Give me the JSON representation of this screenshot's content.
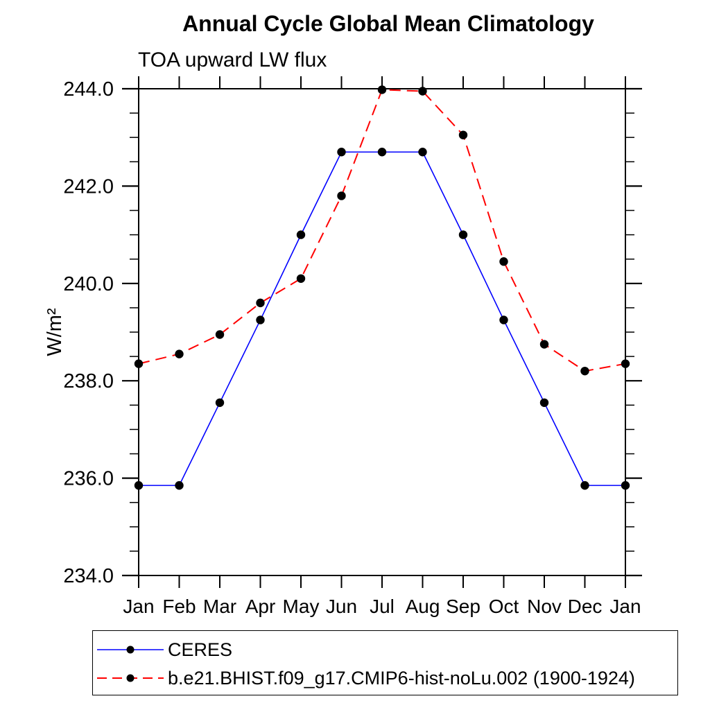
{
  "chart_data": {
    "type": "line",
    "title": "Annual Cycle Global Mean Climatology",
    "subtitle": "TOA upward LW flux",
    "xlabel": "",
    "ylabel": "W/m²",
    "categories": [
      "Jan",
      "Feb",
      "Mar",
      "Apr",
      "May",
      "Jun",
      "Jul",
      "Aug",
      "Sep",
      "Oct",
      "Nov",
      "Dec",
      "Jan"
    ],
    "ylim": [
      234.0,
      244.0
    ],
    "y_major_tick_step": 2.0,
    "y_minor_tick_step": 0.5,
    "y_tick_labels": [
      "234.0",
      "236.0",
      "238.0",
      "240.0",
      "242.0",
      "244.0"
    ],
    "grid": false,
    "legend_position": "bottom-left-box",
    "marker": "filled-circle",
    "marker_color": "#000000",
    "axis_color": "#000000",
    "series": [
      {
        "name": "CERES",
        "color": "#0000ff",
        "line_style": "solid",
        "values": [
          235.85,
          235.85,
          237.55,
          239.25,
          241.0,
          242.7,
          242.7,
          242.7,
          241.0,
          239.25,
          237.55,
          235.85,
          235.85
        ]
      },
      {
        "name": "b.e21.BHIST.f09_g17.CMIP6-hist-noLu.002 (1900-1924)",
        "color": "#ff0000",
        "line_style": "dashed",
        "values": [
          238.35,
          238.55,
          238.95,
          239.6,
          240.1,
          241.8,
          243.98,
          243.95,
          243.05,
          240.45,
          238.75,
          238.2,
          238.35
        ]
      }
    ]
  }
}
